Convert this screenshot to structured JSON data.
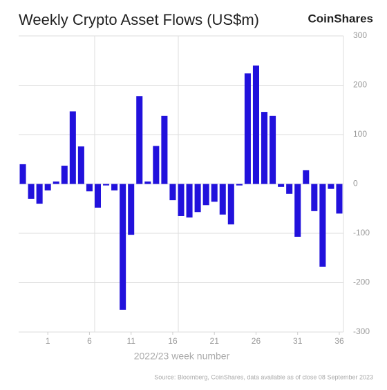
{
  "chart_data": {
    "type": "bar",
    "title": "Weekly Crypto Asset Flows (US$m)",
    "brand": "CoinShares",
    "x_label": "2022/23 week number",
    "source": "Source: Bloomberg, CoinShares, data available as of close 08 September 2023",
    "color": "#2111dc",
    "x": [
      -2,
      -1,
      0,
      1,
      2,
      3,
      4,
      5,
      6,
      7,
      8,
      9,
      10,
      11,
      12,
      13,
      14,
      15,
      16,
      17,
      18,
      19,
      20,
      21,
      22,
      23,
      24,
      25,
      26,
      27,
      28,
      29,
      30,
      31,
      32,
      33,
      34,
      35,
      36
    ],
    "values": [
      40,
      -30,
      -40,
      -13,
      5,
      37,
      147,
      76,
      -15,
      -48,
      -3,
      -13,
      -255,
      -103,
      178,
      5,
      77,
      138,
      -33,
      -65,
      -68,
      -57,
      -43,
      -36,
      -62,
      -82,
      -3,
      224,
      240,
      146,
      138,
      -6,
      -20,
      -107,
      28,
      -55,
      -168,
      -10,
      -60
    ],
    "xlim": [
      -2.5,
      36.5
    ],
    "xticks": [
      1,
      6,
      11,
      16,
      21,
      26,
      31,
      36
    ],
    "ylim": [
      -300,
      300
    ],
    "yticks": [
      -300,
      -200,
      -100,
      0,
      100,
      200,
      300
    ],
    "grid": true
  }
}
